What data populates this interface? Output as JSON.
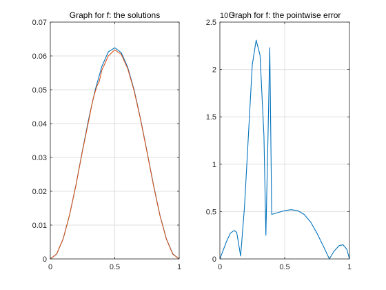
{
  "chart_data": [
    {
      "type": "line",
      "title": "Graph for f: the solutions",
      "xlim": [
        0,
        1
      ],
      "ylim": [
        0,
        0.07
      ],
      "xticks": [
        "0",
        "0.5",
        "1"
      ],
      "yticks": [
        "0",
        "0.01",
        "0.02",
        "0.03",
        "0.04",
        "0.05",
        "0.06",
        "0.07"
      ],
      "grid": true,
      "series": [
        {
          "color": "#0072BD",
          "x": [
            0,
            0.05,
            0.1,
            0.15,
            0.2,
            0.25,
            0.3,
            0.35,
            0.4,
            0.45,
            0.5,
            0.55,
            0.6,
            0.65,
            0.7,
            0.75,
            0.8,
            0.85,
            0.9,
            0.95,
            1
          ],
          "y": [
            0,
            0.0015,
            0.006,
            0.0131,
            0.0221,
            0.0322,
            0.0418,
            0.0502,
            0.0569,
            0.0612,
            0.0624,
            0.061,
            0.0567,
            0.05,
            0.0414,
            0.0318,
            0.022,
            0.013,
            0.006,
            0.0015,
            0
          ]
        },
        {
          "color": "#D95319",
          "x": [
            0,
            0.05,
            0.1,
            0.15,
            0.2,
            0.25,
            0.3,
            0.33,
            0.36,
            0.38,
            0.4,
            0.45,
            0.5,
            0.55,
            0.6,
            0.65,
            0.7,
            0.75,
            0.8,
            0.85,
            0.9,
            0.95,
            1
          ],
          "y": [
            0,
            0.0015,
            0.006,
            0.0131,
            0.022,
            0.032,
            0.0413,
            0.047,
            0.051,
            0.0525,
            0.0558,
            0.06,
            0.0618,
            0.0605,
            0.0563,
            0.0497,
            0.0412,
            0.0316,
            0.0218,
            0.0129,
            0.0059,
            0.0014,
            0
          ]
        }
      ]
    },
    {
      "type": "line",
      "title": "Graph for f: the pointwise error",
      "multiplier": "10⁻³",
      "xlim": [
        0,
        1
      ],
      "ylim": [
        0,
        2.5
      ],
      "xticks": [
        "0",
        "0.5",
        "1"
      ],
      "yticks": [
        "0",
        "0.5",
        "1",
        "1.5",
        "2",
        "2.5"
      ],
      "grid": true,
      "series": [
        {
          "color": "#0072BD",
          "x": [
            0,
            0.05,
            0.08,
            0.11,
            0.13,
            0.16,
            0.19,
            0.22,
            0.25,
            0.28,
            0.31,
            0.34,
            0.355,
            0.37,
            0.385,
            0.4,
            0.45,
            0.5,
            0.55,
            0.6,
            0.65,
            0.7,
            0.75,
            0.8,
            0.845,
            0.88,
            0.92,
            0.95,
            0.98,
            1
          ],
          "y": [
            0,
            0.18,
            0.27,
            0.3,
            0.28,
            0.03,
            0.55,
            1.3,
            2.05,
            2.31,
            2.15,
            1.3,
            0.25,
            1.2,
            2.23,
            0.47,
            0.49,
            0.51,
            0.52,
            0.51,
            0.47,
            0.39,
            0.27,
            0.13,
            0.0,
            0.08,
            0.14,
            0.15,
            0.1,
            0
          ]
        }
      ]
    }
  ]
}
